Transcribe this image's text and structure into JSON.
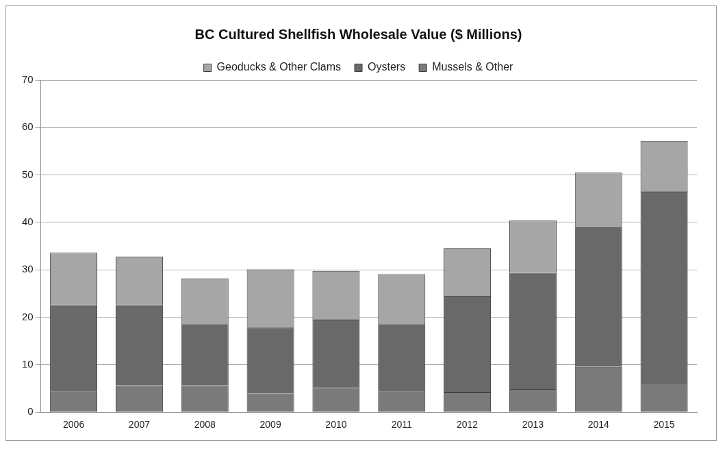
{
  "chart_data": {
    "type": "bar",
    "title": "BC Cultured Shellfish Wholesale Value ($ Millions)",
    "stacked": true,
    "legend": "top",
    "grid": "y",
    "categories": [
      "2006",
      "2007",
      "2008",
      "2009",
      "2010",
      "2011",
      "2012",
      "2013",
      "2014",
      "2015"
    ],
    "series": [
      {
        "name": "Mussels & Other",
        "color": "#7a7a7a",
        "values": [
          4.4,
          5.6,
          5.6,
          4.0,
          5.2,
          4.4,
          4.2,
          4.8,
          9.6,
          5.7
        ]
      },
      {
        "name": "Oysters",
        "color": "#696969",
        "values": [
          18.2,
          17.0,
          13.0,
          13.9,
          14.3,
          14.2,
          20.2,
          24.6,
          29.6,
          40.8
        ]
      },
      {
        "name": "Geoducks & Other Clams",
        "color": "#a6a6a6",
        "values": [
          11.0,
          10.2,
          9.6,
          12.2,
          10.3,
          10.5,
          10.1,
          11.0,
          11.3,
          10.7
        ]
      }
    ],
    "ylim": [
      0,
      70
    ],
    "yticks": [
      0,
      10,
      20,
      30,
      40,
      50,
      60,
      70
    ]
  }
}
